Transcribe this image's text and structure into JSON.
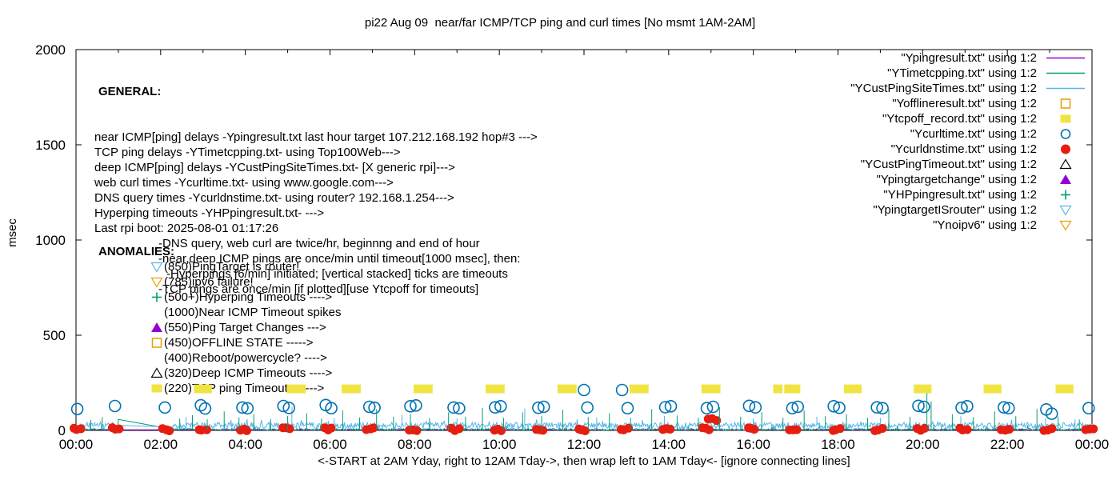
{
  "title": "pi22 Aug 09  near/far ICMP/TCP ping and curl times [No msmt 1AM-2AM]",
  "y_axis_label": "msec",
  "x_axis_label": "<-START at 2AM Yday, right to 12AM Tday->, then wrap left to 1AM Tday<- [ignore connecting lines]",
  "general": {
    "heading": "GENERAL:",
    "lines": [
      {
        "indent": 0,
        "text": "near ICMP[ping] delays -Ypingresult.txt last hour target 107.212.168.192 hop#3 --->"
      },
      {
        "indent": 0,
        "text": "TCP ping delays -YTimetcpping.txt- using Top100Web--->"
      },
      {
        "indent": 0,
        "text": "deep ICMP[ping] delays -YCustPingSiteTimes.txt- [X generic rpi]--->"
      },
      {
        "indent": 0,
        "text": "web curl times -Ycurltime.txt- using www.google.com--->"
      },
      {
        "indent": 0,
        "text": "DNS query times -Ycurldnstime.txt- using router? 192.168.1.254--->"
      },
      {
        "indent": 0,
        "text": "Hyperping timeouts -YHPpingresult.txt- --->"
      },
      {
        "indent": 0,
        "text": "Last rpi boot: 2025-08-01 01:17:26"
      },
      {
        "indent": 1,
        "text": "-DNS query, web curl are twice/hr, beginnng and end of hour"
      },
      {
        "indent": 1,
        "text": "-near,deep ICMP pings are once/min until timeout[1000 msec], then:"
      },
      {
        "indent": 2,
        "text": "-Hyperpings [6/min] initiated; [vertical stacked] ticks are timeouts"
      },
      {
        "indent": 1,
        "text": "-TCP pings are once/min [if plotted][use Ytcpoff for timeouts]"
      }
    ]
  },
  "anomalies": {
    "heading": "ANOMALIES:",
    "items": [
      {
        "icon": "triangle-down-open",
        "color": "#56B4E9",
        "text": "(850)PingTarget is router!"
      },
      {
        "icon": "triangle-down-open",
        "color": "#E69F00",
        "text": "(785)ipv6 failure!"
      },
      {
        "icon": "plus",
        "color": "#009E73",
        "text": "(500+)Hyperping Timeouts ---->"
      },
      {
        "icon": "none",
        "color": "",
        "text": "(1000)Near ICMP Timeout spikes"
      },
      {
        "icon": "triangle-up-filled",
        "color": "#9400D3",
        "text": "(550)Ping Target Changes --->"
      },
      {
        "icon": "square-open",
        "color": "#E69F00",
        "text": "(450)OFFLINE STATE ----->"
      },
      {
        "icon": "none",
        "color": "",
        "text": "(400)Reboot/powercycle? ---->"
      },
      {
        "icon": "triangle-up-open",
        "color": "#000000",
        "text": "(320)Deep ICMP Timeouts ---->"
      },
      {
        "icon": "square-filled",
        "color": "#F0E442",
        "text": "(220)TCP ping Timeouts ----->"
      }
    ]
  },
  "chart_data": {
    "type": "line",
    "title": "pi22 Aug 09  near/far ICMP/TCP ping and curl times [No msmt 1AM-2AM]",
    "xlabel": "<-START at 2AM Yday, right to 12AM Tday->, then wrap left to 1AM Tday<- [ignore connecting lines]",
    "ylabel": "msec",
    "ylim": [
      0,
      2000
    ],
    "y_ticks": [
      0,
      500,
      1000,
      1500,
      2000
    ],
    "x_range_hours": [
      0,
      24
    ],
    "x_tick_hours": [
      0,
      2,
      4,
      6,
      8,
      10,
      12,
      14,
      16,
      18,
      20,
      22,
      24
    ],
    "x_tick_labels": [
      "00:00",
      "02:00",
      "04:00",
      "06:00",
      "08:00",
      "10:00",
      "12:00",
      "14:00",
      "16:00",
      "18:00",
      "20:00",
      "22:00",
      "00:00"
    ],
    "no_measurement_gap_hours": [
      1.0,
      2.25
    ],
    "grid": false,
    "legend_position": "top-right",
    "noise_seed": 1234,
    "series": [
      {
        "name": "Ypingresult.txt",
        "legend_label": "\"Ypingresult.txt\" using 1:2",
        "marker": "line",
        "color": "#9400D3",
        "style": "noisy-line",
        "baseline_msec": 3,
        "noise_msec": 2
      },
      {
        "name": "YTimetcpping.txt",
        "legend_label": "\"YTimetcpping.txt\" using 1:2",
        "marker": "line",
        "color": "#009E73",
        "style": "noisy-line",
        "baseline_msec": 5,
        "noise_msec": 5,
        "burst_prob": 0.05,
        "burst_extra_msec": 18,
        "gap_edge_msec": 58
      },
      {
        "name": "YCustPingSiteTimes.txt",
        "legend_label": "\"YCustPingSiteTimes.txt\" using 1:2",
        "marker": "line",
        "color": "#56B4E9",
        "style": "noisy-line",
        "baseline_msec": 26,
        "noise_msec": 16,
        "burst_prob": 0.06,
        "burst_extra_msec": 22,
        "spikes": [
          [
            2.6,
            70
          ],
          [
            5.1,
            125
          ],
          [
            6.1,
            65
          ],
          [
            7.7,
            82
          ],
          [
            9.0,
            64
          ],
          [
            10.6,
            115
          ],
          [
            12.3,
            68
          ],
          [
            13.9,
            76
          ],
          [
            16.0,
            62
          ],
          [
            17.5,
            72
          ],
          [
            19.0,
            66
          ],
          [
            20.9,
            74
          ],
          [
            22.9,
            64
          ],
          [
            23.6,
            58
          ]
        ]
      },
      {
        "name": "Yofflineresult.txt",
        "legend_label": "\"Yofflineresult.txt\" using 1:2",
        "marker": "square-open",
        "color": "#E69F00",
        "style": "points",
        "points": []
      },
      {
        "name": "Ytcpoff_record.txt",
        "legend_label": "\"Ytcpoff_record.txt\" using 1:2",
        "marker": "square-filled",
        "color": "#F0E442",
        "style": "blocks",
        "block_msec": 220,
        "blocks": [
          [
            3.0,
            0.42
          ],
          [
            5.2,
            0.45
          ],
          [
            6.5,
            0.45
          ],
          [
            8.2,
            0.45
          ],
          [
            9.9,
            0.45
          ],
          [
            11.6,
            0.45
          ],
          [
            13.3,
            0.45
          ],
          [
            15.0,
            0.45
          ],
          [
            16.58,
            0.22
          ],
          [
            16.92,
            0.38
          ],
          [
            18.35,
            0.42
          ],
          [
            20.0,
            0.42
          ],
          [
            21.65,
            0.42
          ],
          [
            23.35,
            0.42
          ]
        ]
      },
      {
        "name": "Ycurltime.txt",
        "legend_label": "\"Ycurltime.txt\" using 1:2",
        "marker": "circle-open",
        "color": "#0072B2",
        "style": "points",
        "points": [
          [
            0.03,
            112
          ],
          [
            0.92,
            128
          ],
          [
            2.1,
            120
          ],
          [
            2.95,
            132
          ],
          [
            3.05,
            115
          ],
          [
            3.93,
            120
          ],
          [
            4.05,
            116
          ],
          [
            4.9,
            128
          ],
          [
            5.03,
            118
          ],
          [
            5.9,
            133
          ],
          [
            6.03,
            117
          ],
          [
            6.93,
            124
          ],
          [
            7.05,
            119
          ],
          [
            7.9,
            127
          ],
          [
            8.03,
            131
          ],
          [
            8.92,
            120
          ],
          [
            9.05,
            116
          ],
          [
            9.9,
            121
          ],
          [
            10.03,
            127
          ],
          [
            10.92,
            119
          ],
          [
            11.05,
            124
          ],
          [
            12.0,
            212
          ],
          [
            12.08,
            120
          ],
          [
            12.9,
            212
          ],
          [
            13.03,
            117
          ],
          [
            13.92,
            122
          ],
          [
            14.05,
            127
          ],
          [
            14.9,
            117
          ],
          [
            15.05,
            124
          ],
          [
            15.9,
            129
          ],
          [
            16.05,
            121
          ],
          [
            16.92,
            117
          ],
          [
            17.05,
            124
          ],
          [
            17.9,
            127
          ],
          [
            18.03,
            119
          ],
          [
            18.92,
            121
          ],
          [
            19.05,
            117
          ],
          [
            19.9,
            129
          ],
          [
            20.03,
            124
          ],
          [
            20.92,
            119
          ],
          [
            21.05,
            127
          ],
          [
            21.92,
            121
          ],
          [
            22.03,
            117
          ],
          [
            22.92,
            110
          ],
          [
            23.05,
            88
          ],
          [
            23.92,
            117
          ]
        ]
      },
      {
        "name": "Ycurldnstime.txt",
        "legend_label": "\"Ycurldnstime.txt\" using 1:2",
        "marker": "circle-filled",
        "color": "#E51E10",
        "style": "point-clusters",
        "clusters": [
          [
            0.05,
            6
          ],
          [
            0.95,
            6
          ],
          [
            2.15,
            6
          ],
          [
            3.0,
            6
          ],
          [
            3.98,
            6
          ],
          [
            4.97,
            6
          ],
          [
            5.97,
            6
          ],
          [
            6.97,
            6
          ],
          [
            7.97,
            6
          ],
          [
            8.97,
            6
          ],
          [
            9.97,
            6
          ],
          [
            10.97,
            6
          ],
          [
            11.97,
            6
          ],
          [
            12.97,
            6
          ],
          [
            13.97,
            6
          ],
          [
            14.9,
            6
          ],
          [
            15.05,
            55
          ],
          [
            15.97,
            6
          ],
          [
            16.97,
            6
          ],
          [
            17.97,
            6
          ],
          [
            18.97,
            6
          ],
          [
            19.97,
            6
          ],
          [
            20.97,
            6
          ],
          [
            21.97,
            6
          ],
          [
            22.97,
            6
          ],
          [
            23.95,
            6
          ]
        ]
      },
      {
        "name": "YCustPingTimeout.txt",
        "legend_label": "\"YCustPingTimeout.txt\" using 1:2",
        "marker": "triangle-up-open",
        "color": "#000000",
        "style": "points",
        "points": []
      },
      {
        "name": "Ypingtargetchange",
        "legend_label": "\"Ypingtargetchange\" using 1:2",
        "marker": "triangle-up-filled",
        "color": "#9400D3",
        "style": "points",
        "points": []
      },
      {
        "name": "YHPpingresult.txt",
        "legend_label": "\"YHPpingresult.txt\" using 1:2",
        "marker": "plus",
        "color": "#009E73",
        "style": "impulses",
        "impulse_base_msec": 2,
        "impulses": [
          [
            0.35,
            55
          ],
          [
            0.62,
            70
          ],
          [
            2.45,
            62
          ],
          [
            2.75,
            80
          ],
          [
            3.1,
            58
          ],
          [
            3.5,
            100
          ],
          [
            3.85,
            68
          ],
          [
            4.2,
            85
          ],
          [
            4.6,
            60
          ],
          [
            5.0,
            75
          ],
          [
            5.45,
            90
          ],
          [
            5.8,
            62
          ],
          [
            6.3,
            105
          ],
          [
            6.7,
            68
          ],
          [
            7.1,
            112
          ],
          [
            7.5,
            72
          ],
          [
            7.9,
            85
          ],
          [
            8.35,
            64
          ],
          [
            8.8,
            95
          ],
          [
            9.2,
            72
          ],
          [
            9.6,
            118
          ],
          [
            10.1,
            66
          ],
          [
            10.55,
            95
          ],
          [
            11.0,
            75
          ],
          [
            11.5,
            108
          ],
          [
            12.1,
            70
          ],
          [
            12.6,
            90
          ],
          [
            13.1,
            66
          ],
          [
            13.6,
            112
          ],
          [
            14.2,
            78
          ],
          [
            14.7,
            66
          ],
          [
            15.2,
            122
          ],
          [
            15.7,
            72
          ],
          [
            16.2,
            95
          ],
          [
            16.7,
            66
          ],
          [
            17.2,
            105
          ],
          [
            17.7,
            75
          ],
          [
            18.2,
            85
          ],
          [
            18.7,
            66
          ],
          [
            19.2,
            110
          ],
          [
            19.7,
            72
          ],
          [
            20.1,
            195
          ],
          [
            20.2,
            152
          ],
          [
            20.7,
            85
          ],
          [
            21.2,
            70
          ],
          [
            21.7,
            100
          ],
          [
            22.2,
            75
          ],
          [
            22.7,
            112
          ],
          [
            23.2,
            72
          ],
          [
            23.7,
            58
          ]
        ]
      },
      {
        "name": "YpingtargetISrouter",
        "legend_label": "\"YpingtargetISrouter\" using 1:2",
        "marker": "triangle-down-open",
        "color": "#56B4E9",
        "style": "points",
        "points": []
      },
      {
        "name": "Ynoipv6",
        "legend_label": "\"Ynoipv6\" using 1:2",
        "marker": "triangle-down-open",
        "color": "#E69F00",
        "style": "points",
        "points": []
      }
    ]
  }
}
